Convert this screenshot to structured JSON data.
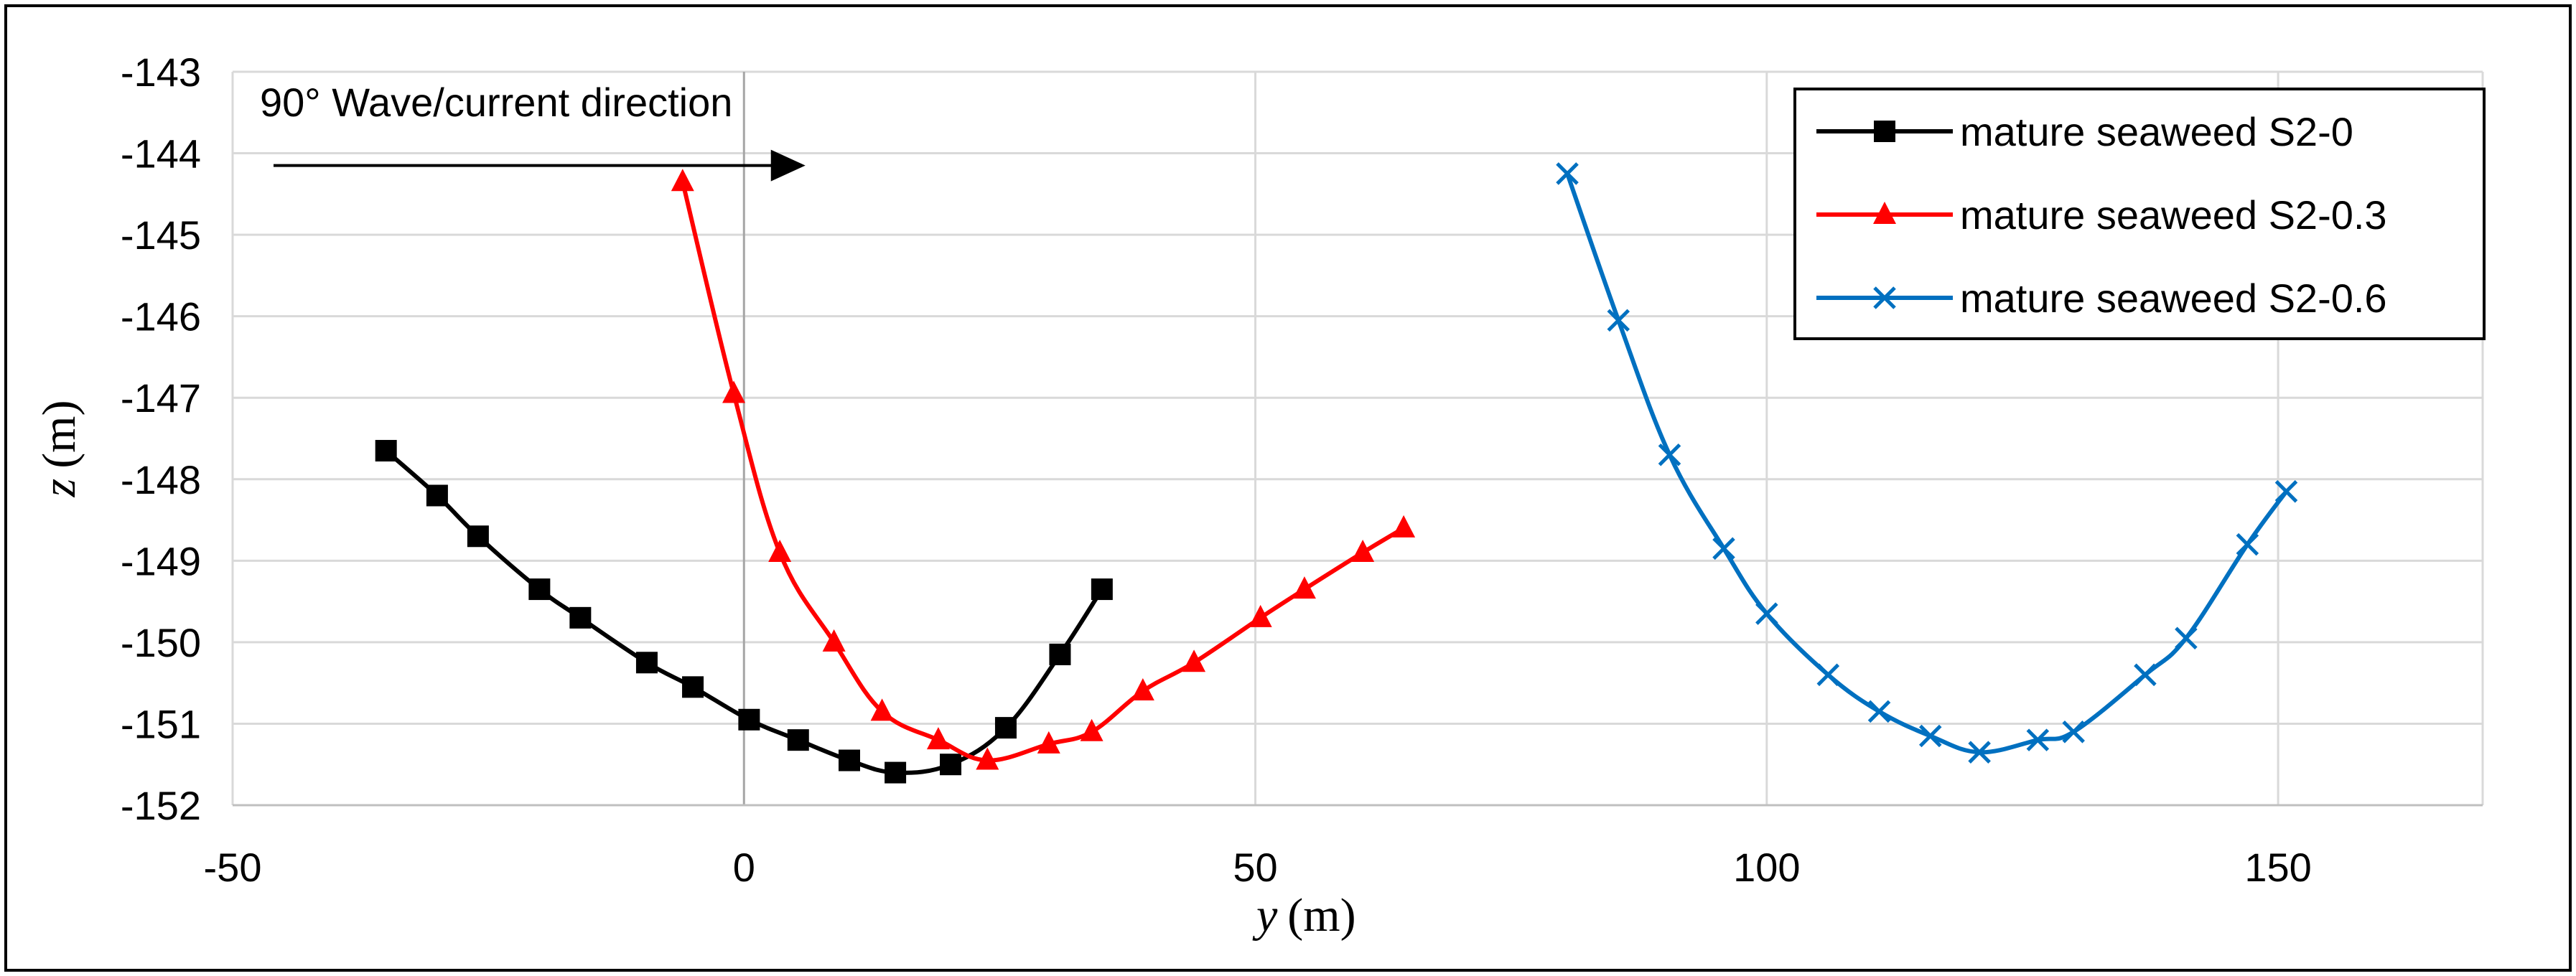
{
  "chart_data": {
    "type": "line",
    "title": "",
    "xlabel": {
      "var": "y",
      "unit": "(m)"
    },
    "ylabel": {
      "var": "z",
      "unit": "(m)"
    },
    "xlim": [
      -50,
      170
    ],
    "ylim": [
      -152,
      -143
    ],
    "xticks": [
      -50,
      0,
      50,
      100,
      150
    ],
    "yticks": [
      -143,
      -144,
      -145,
      -146,
      -147,
      -148,
      -149,
      -150,
      -151,
      -152
    ],
    "grid": true,
    "legend_position": "top-right",
    "annotation": {
      "text": "90° Wave/current direction",
      "arrow_from": [
        -46,
        -144.15
      ],
      "arrow_to": [
        6,
        -144.15
      ]
    },
    "series": [
      {
        "name": "mature seaweed S2-0",
        "color": "#000000",
        "marker": "square",
        "x": [
          -35,
          -30,
          -26,
          -20,
          -16,
          -9.5,
          -5,
          0.5,
          5.3,
          10.3,
          14.8,
          20.2,
          25.6,
          30.9,
          35
        ],
        "y": [
          -147.65,
          -148.2,
          -148.7,
          -149.35,
          -149.7,
          -150.25,
          -150.55,
          -150.95,
          -151.2,
          -151.45,
          -151.6,
          -151.5,
          -151.05,
          -150.15,
          -149.35
        ]
      },
      {
        "name": "mature seaweed S2-0.3",
        "color": "#ff0000",
        "marker": "triangle",
        "x": [
          -6,
          -1,
          3.5,
          8.8,
          13.5,
          19,
          23.8,
          29.8,
          34,
          39,
          44,
          50.5,
          54.8,
          60.5,
          64.5
        ],
        "y": [
          -144.35,
          -146.95,
          -148.9,
          -150.0,
          -150.85,
          -151.2,
          -151.45,
          -151.25,
          -151.1,
          -150.6,
          -150.25,
          -149.7,
          -149.35,
          -148.9,
          -148.6
        ]
      },
      {
        "name": "mature seaweed S2-0.6",
        "color": "#0070c0",
        "marker": "x",
        "x": [
          80.5,
          85.5,
          90.5,
          95.8,
          100,
          106,
          111,
          116,
          120.8,
          126.5,
          130,
          137,
          141,
          147,
          150.8
        ],
        "y": [
          -144.25,
          -146.05,
          -147.7,
          -148.85,
          -149.65,
          -150.4,
          -150.85,
          -151.15,
          -151.35,
          -151.2,
          -151.1,
          -150.4,
          -149.95,
          -148.8,
          -148.15
        ]
      }
    ]
  }
}
